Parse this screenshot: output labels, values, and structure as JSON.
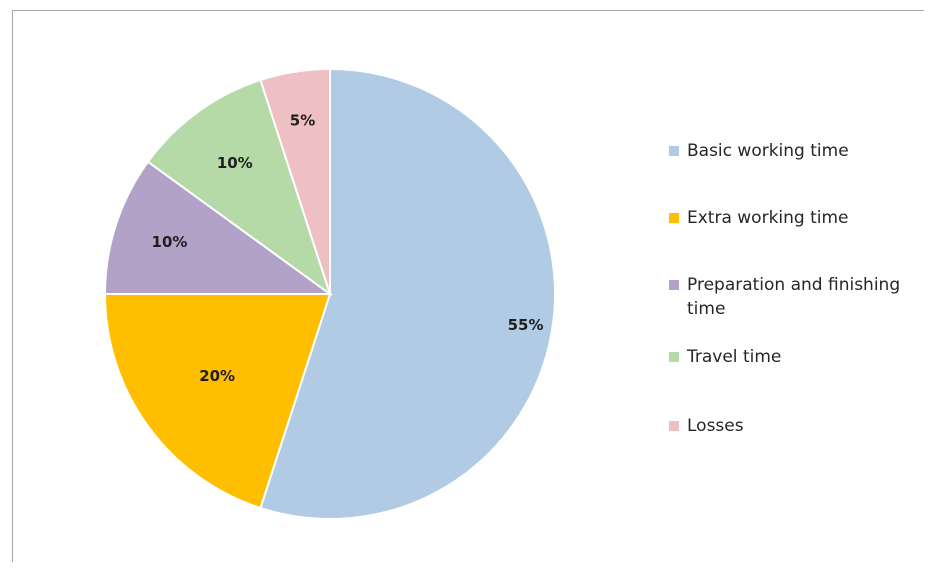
{
  "chart_data": {
    "type": "pie",
    "slices": [
      {
        "label": "Basic working time",
        "value": 55,
        "display": "55%",
        "color": "#b1cbe4"
      },
      {
        "label": "Extra working time",
        "value": 20,
        "display": "20%",
        "color": "#ffbf00"
      },
      {
        "label": "Preparation and finishing time",
        "value": 10,
        "display": "10%",
        "color": "#b3a2c7"
      },
      {
        "label": "Travel time",
        "value": 10,
        "display": "10%",
        "color": "#b5d9a7"
      },
      {
        "label": "Losses",
        "value": 5,
        "display": "5%",
        "color": "#eec0c4"
      }
    ],
    "legend_position": "right",
    "start_angle": "12 o'clock",
    "direction": "clockwise"
  }
}
